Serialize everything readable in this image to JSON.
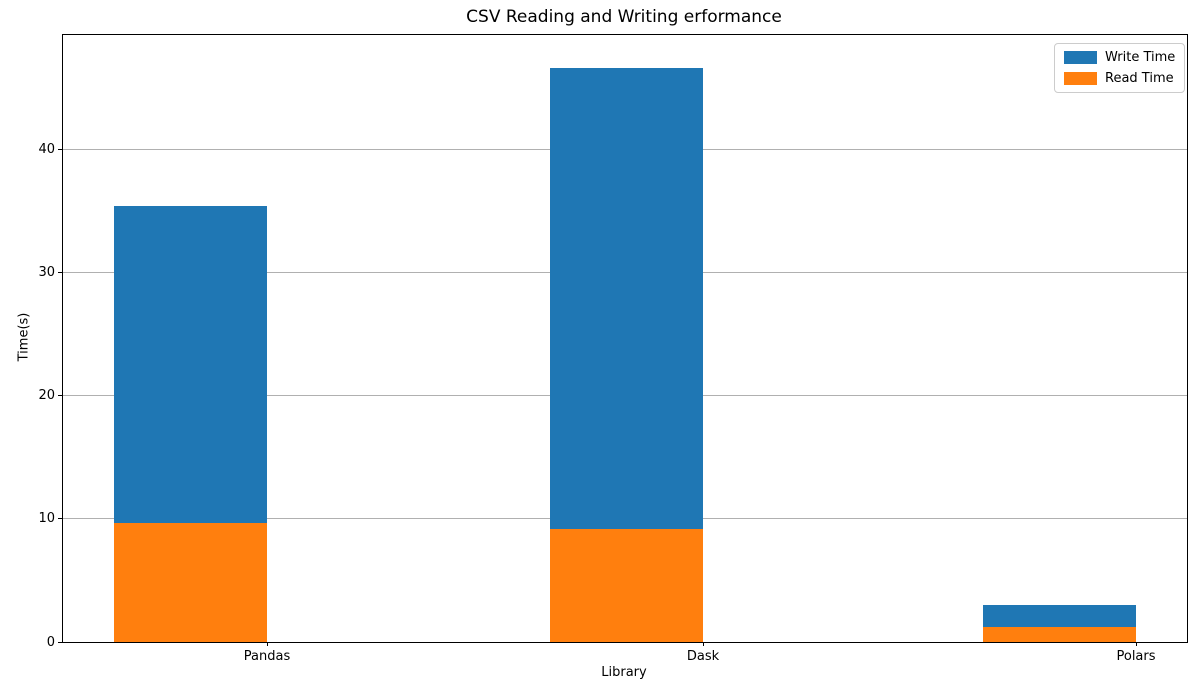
{
  "chart_data": {
    "type": "bar",
    "style": "overlaid",
    "title": "CSV Reading and Writing erformance",
    "xlabel": "Library",
    "ylabel": "Time(s)",
    "categories": [
      "Pandas",
      "Dask",
      "Polars"
    ],
    "series": [
      {
        "name": "Write Time",
        "color": "#1f77b4",
        "values": [
          35.4,
          46.6,
          3.0
        ]
      },
      {
        "name": "Read Time",
        "color": "#ff7f0e",
        "values": [
          9.7,
          9.2,
          1.2
        ]
      }
    ],
    "ylim": [
      0,
      49.3
    ],
    "yticks": [
      0,
      10,
      20,
      30,
      40
    ],
    "grid": "horizontal",
    "grid_color": "#b0b0b0",
    "legend_position": "upper right",
    "background_color": "#ffffff"
  }
}
